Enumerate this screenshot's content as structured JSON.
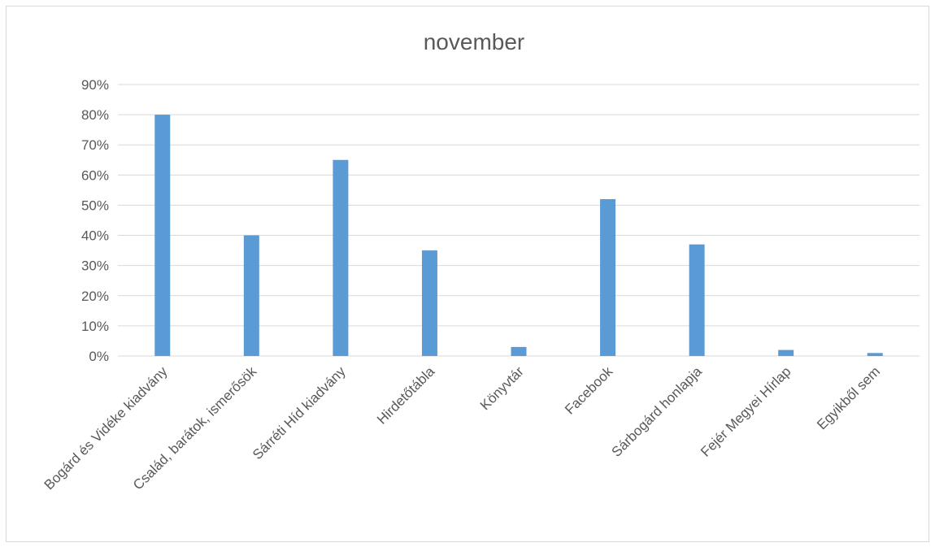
{
  "chart_data": {
    "type": "bar",
    "title": "november",
    "xlabel": "",
    "ylabel": "",
    "categories": [
      "Bogárd és Vidéke kiadvány",
      "Család, barátok, ismerősök",
      "Sárréti Híd kiadvány",
      "Hirdetőtábla",
      "Könyvtár",
      "Facebook",
      "Sárbogárd honlapja",
      "Fejér Megyei Hírlap",
      "Egyikből sem"
    ],
    "values": [
      80,
      40,
      65,
      35,
      3,
      52,
      37,
      2,
      1
    ],
    "ylim": [
      0,
      90
    ],
    "yticks": [
      "0%",
      "10%",
      "20%",
      "30%",
      "40%",
      "50%",
      "60%",
      "70%",
      "80%",
      "90%"
    ],
    "grid": true,
    "legend": "none",
    "bar_color": "#5b9bd5"
  }
}
